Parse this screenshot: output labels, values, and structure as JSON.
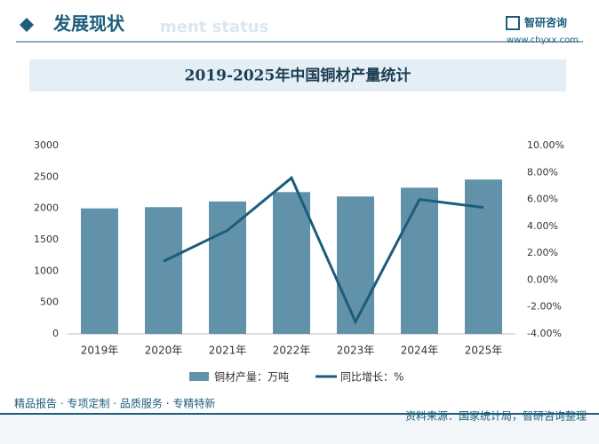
{
  "header": {
    "title": "发展现状",
    "subtitle": "ment status",
    "logo": "智研咨询",
    "website": "www.chyxx.com"
  },
  "chart_data": {
    "type": "bar-line",
    "title": "2019-2025年中国铜材产量统计",
    "categories": [
      "2019年",
      "2020年",
      "2021年",
      "2022年",
      "2023年",
      "2024年",
      "2025年"
    ],
    "series": [
      {
        "name": "铜材产量：万吨",
        "type": "bar",
        "color": "#6192aa",
        "values": [
          2000,
          2020,
          2110,
          2260,
          2190,
          2330,
          2460
        ]
      },
      {
        "name": "同比增长：%",
        "type": "line",
        "axis": "y2",
        "color": "#1c5d7c",
        "values": [
          null,
          1.4,
          3.7,
          7.6,
          -3.1,
          6.0,
          5.4
        ]
      }
    ],
    "ylim": [
      0,
      3000
    ],
    "yticks": [
      0,
      500,
      1000,
      1500,
      2000,
      2500,
      3000
    ],
    "y2lim": [
      -4,
      10
    ],
    "y2ticks": [
      {
        "value": -4,
        "label": "-4.00%"
      },
      {
        "value": -2,
        "label": "-2.00%"
      },
      {
        "value": 0,
        "label": "0.00%"
      },
      {
        "value": 2,
        "label": "2.00%"
      },
      {
        "value": 4,
        "label": "4.00%"
      },
      {
        "value": 6,
        "label": "6.00%"
      },
      {
        "value": 8,
        "label": "8.00%"
      },
      {
        "value": 10,
        "label": "10.00%"
      }
    ],
    "grid": false,
    "legend": "bottom"
  },
  "footer": {
    "left": "精品报告 · 专项定制 · 品质服务 · 专精特新",
    "source": "资料来源：国家统计局，智研咨询整理"
  }
}
